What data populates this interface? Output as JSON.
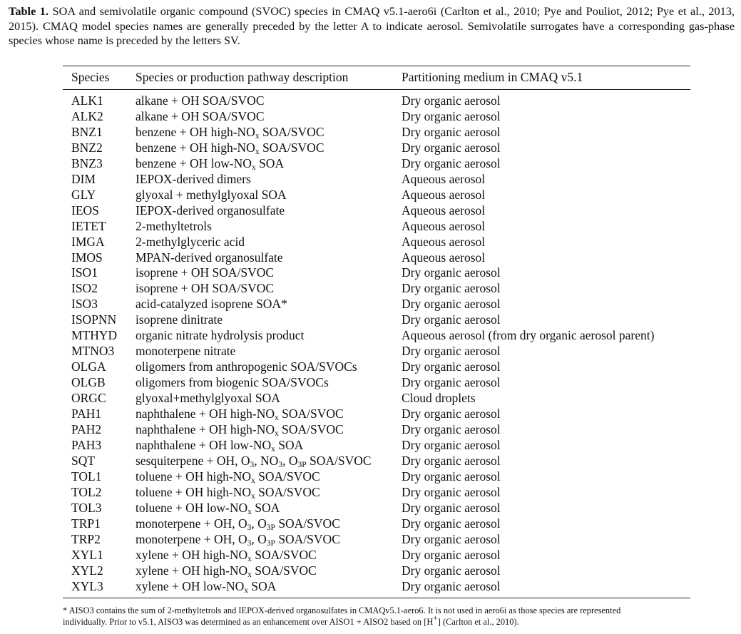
{
  "caption": {
    "label": "Table 1.",
    "text": "SOA and semivolatile organic compound (SVOC) species in CMAQ v5.1-aero6i (Carlton et al., 2010; Pye and Pouliot, 2012; Pye et al., 2013, 2015). CMAQ model species names are generally preceded by the letter A to indicate aerosol. Semivolatile surrogates have a corresponding gas-phase species whose name is preceded by the letters SV."
  },
  "table": {
    "headers": [
      "Species",
      "Species or production pathway description",
      "Partitioning medium in CMAQ v5.1"
    ],
    "rows": [
      [
        "ALK1",
        "alkane + OH SOA/SVOC",
        "Dry organic aerosol"
      ],
      [
        "ALK2",
        "alkane + OH SOA/SVOC",
        "Dry organic aerosol"
      ],
      [
        "BNZ1",
        "benzene + OH high-NO_x SOA/SVOC",
        "Dry organic aerosol"
      ],
      [
        "BNZ2",
        "benzene + OH high-NO_x SOA/SVOC",
        "Dry organic aerosol"
      ],
      [
        "BNZ3",
        "benzene + OH low-NO_x SOA",
        "Dry organic aerosol"
      ],
      [
        "DIM",
        "IEPOX-derived dimers",
        "Aqueous aerosol"
      ],
      [
        "GLY",
        "glyoxal + methylglyoxal SOA",
        "Aqueous aerosol"
      ],
      [
        "IEOS",
        "IEPOX-derived organosulfate",
        "Aqueous aerosol"
      ],
      [
        "IETET",
        "2-methyltetrols",
        "Aqueous aerosol"
      ],
      [
        "IMGA",
        "2-methylglyceric acid",
        "Aqueous aerosol"
      ],
      [
        "IMOS",
        "MPAN-derived organosulfate",
        "Aqueous aerosol"
      ],
      [
        "ISO1",
        "isoprene + OH SOA/SVOC",
        "Dry organic aerosol"
      ],
      [
        "ISO2",
        "isoprene + OH SOA/SVOC",
        "Dry organic aerosol"
      ],
      [
        "ISO3",
        "acid-catalyzed isoprene SOA*",
        "Dry organic aerosol"
      ],
      [
        "ISOPNN",
        "isoprene dinitrate",
        "Dry organic aerosol"
      ],
      [
        "MTHYD",
        "organic nitrate hydrolysis product",
        "Aqueous aerosol (from dry organic aerosol parent)"
      ],
      [
        "MTNO3",
        "monoterpene nitrate",
        "Dry organic aerosol"
      ],
      [
        "OLGA",
        "oligomers from anthropogenic SOA/SVOCs",
        "Dry organic aerosol"
      ],
      [
        "OLGB",
        "oligomers from biogenic SOA/SVOCs",
        "Dry organic aerosol"
      ],
      [
        "ORGC",
        "glyoxal+methylglyoxal SOA",
        "Cloud droplets"
      ],
      [
        "PAH1",
        "naphthalene + OH high-NO_x SOA/SVOC",
        "Dry organic aerosol"
      ],
      [
        "PAH2",
        "naphthalene + OH high-NO_x SOA/SVOC",
        "Dry organic aerosol"
      ],
      [
        "PAH3",
        "naphthalene + OH low-NO_x SOA",
        "Dry organic aerosol"
      ],
      [
        "SQT",
        "sesquiterpene + OH, O_3, NO_3, O_3P SOA/SVOC",
        "Dry organic aerosol"
      ],
      [
        "TOL1",
        "toluene + OH high-NO_x SOA/SVOC",
        "Dry organic aerosol"
      ],
      [
        "TOL2",
        "toluene + OH high-NO_x SOA/SVOC",
        "Dry organic aerosol"
      ],
      [
        "TOL3",
        "toluene + OH low-NO_x SOA",
        "Dry organic aerosol"
      ],
      [
        "TRP1",
        "monoterpene + OH, O_3, O_3P SOA/SVOC",
        "Dry organic aerosol"
      ],
      [
        "TRP2",
        "monoterpene + OH, O_3, O_3P SOA/SVOC",
        "Dry organic aerosol"
      ],
      [
        "XYL1",
        "xylene + OH high-NO_x SOA/SVOC",
        "Dry organic aerosol"
      ],
      [
        "XYL2",
        "xylene + OH high-NO_x SOA/SVOC",
        "Dry organic aerosol"
      ],
      [
        "XYL3",
        "xylene + OH low-NO_x SOA",
        "Dry organic aerosol"
      ]
    ]
  },
  "footnote": "* AISO3 contains the sum of 2-methyltetrols and IEPOX-derived organosulfates in CMAQv5.1-aero6. It is not used in aero6i as those species are represented individually. Prior to v5.1, AISO3 was determined as an enhancement over AISO1 + AISO2 based on [H^+] (Carlton et al., 2010)."
}
